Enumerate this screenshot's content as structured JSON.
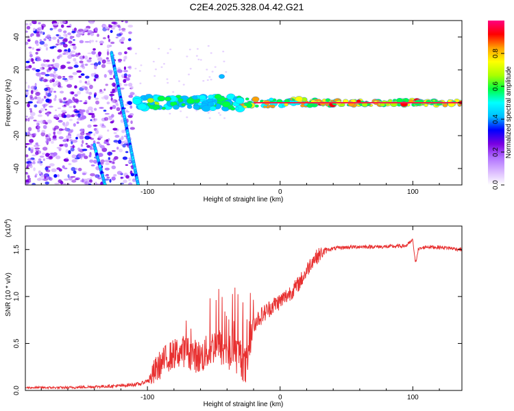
{
  "title": "C2E4.2025.328.04.42.G21",
  "chart_data": [
    {
      "type": "heatmap",
      "name": "spectrogram",
      "xlabel": "Height of straight line (km)",
      "ylabel": "Frequency (Hz)",
      "xlim": [
        -192,
        137
      ],
      "ylim": [
        -50,
        50
      ],
      "xticks": [
        -100,
        0,
        100
      ],
      "xtick_labels": [
        "-100",
        "0",
        "100"
      ],
      "yticks": [
        -40,
        -20,
        0,
        20,
        40
      ],
      "ytick_labels": [
        "-40",
        "-20",
        "0",
        "20",
        "40"
      ],
      "colorbar": {
        "label": "Normalized spectral amplitude",
        "range": [
          0,
          1
        ],
        "ticks": [
          0.0,
          0.2,
          0.4,
          0.6,
          0.8
        ],
        "tick_labels": [
          "0.0",
          "0.2",
          "0.4",
          "0.6",
          "0.8"
        ],
        "colors": [
          "#ffffff",
          "#d9b8ff",
          "#b070ff",
          "#7a00e0",
          "#0000ff",
          "#00bfff",
          "#00ffff",
          "#00ff40",
          "#aaff00",
          "#ffff00",
          "#ffa000",
          "#ff0000",
          "#ff0080"
        ]
      },
      "features": {
        "noise_region_x": [
          -192,
          -110
        ],
        "steep_streak": {
          "x": [
            -127,
            -107
          ],
          "y": [
            30,
            -50
          ]
        },
        "second_streak": {
          "x": [
            -140,
            -132
          ],
          "y": [
            -26,
            -50
          ]
        },
        "carrier_band": {
          "x_start": -108,
          "x_end": 137,
          "y": 0
        }
      }
    },
    {
      "type": "line",
      "name": "snr",
      "xlabel": "Height of straight line (km)",
      "ylabel": "SNR (10 * v/v)",
      "y_multiplier": "(x10^4)",
      "y_multiplier_base": "(x10",
      "y_multiplier_exp": "4",
      "y_multiplier_close": ")",
      "xlim": [
        -192,
        137
      ],
      "ylim": [
        0,
        1.75
      ],
      "xticks": [
        -100,
        0,
        100
      ],
      "xtick_labels": [
        "-100",
        "0",
        "100"
      ],
      "yticks": [
        0.0,
        0.5,
        1.0,
        1.5
      ],
      "ytick_labels": [
        "0.0",
        "0.5",
        "1.0",
        "1.5"
      ],
      "color": "#e83030",
      "trend_x": [
        -192,
        -160,
        -140,
        -120,
        -105,
        -98,
        -92,
        -85,
        -78,
        -72,
        -66,
        -60,
        -54,
        -48,
        -42,
        -36,
        -30,
        -26,
        -23,
        -18,
        -12,
        -6,
        0,
        6,
        12,
        18,
        24,
        30,
        36,
        45,
        60,
        80,
        95,
        100,
        102,
        104,
        110,
        125,
        137
      ],
      "trend_y": [
        0.03,
        0.03,
        0.04,
        0.05,
        0.07,
        0.12,
        0.25,
        0.35,
        0.4,
        0.42,
        0.38,
        0.35,
        0.42,
        0.5,
        0.42,
        0.38,
        0.38,
        0.22,
        0.55,
        0.75,
        0.82,
        0.9,
        0.95,
        1.02,
        1.1,
        1.22,
        1.38,
        1.45,
        1.5,
        1.52,
        1.53,
        1.53,
        1.54,
        1.6,
        1.35,
        1.5,
        1.53,
        1.52,
        1.5
      ],
      "noise_amp_x": [
        -192,
        -100,
        -95,
        -23,
        -20,
        30,
        36,
        137
      ],
      "noise_amp_y": [
        0.01,
        0.02,
        0.15,
        0.22,
        0.1,
        0.08,
        0.02,
        0.02
      ]
    }
  ]
}
